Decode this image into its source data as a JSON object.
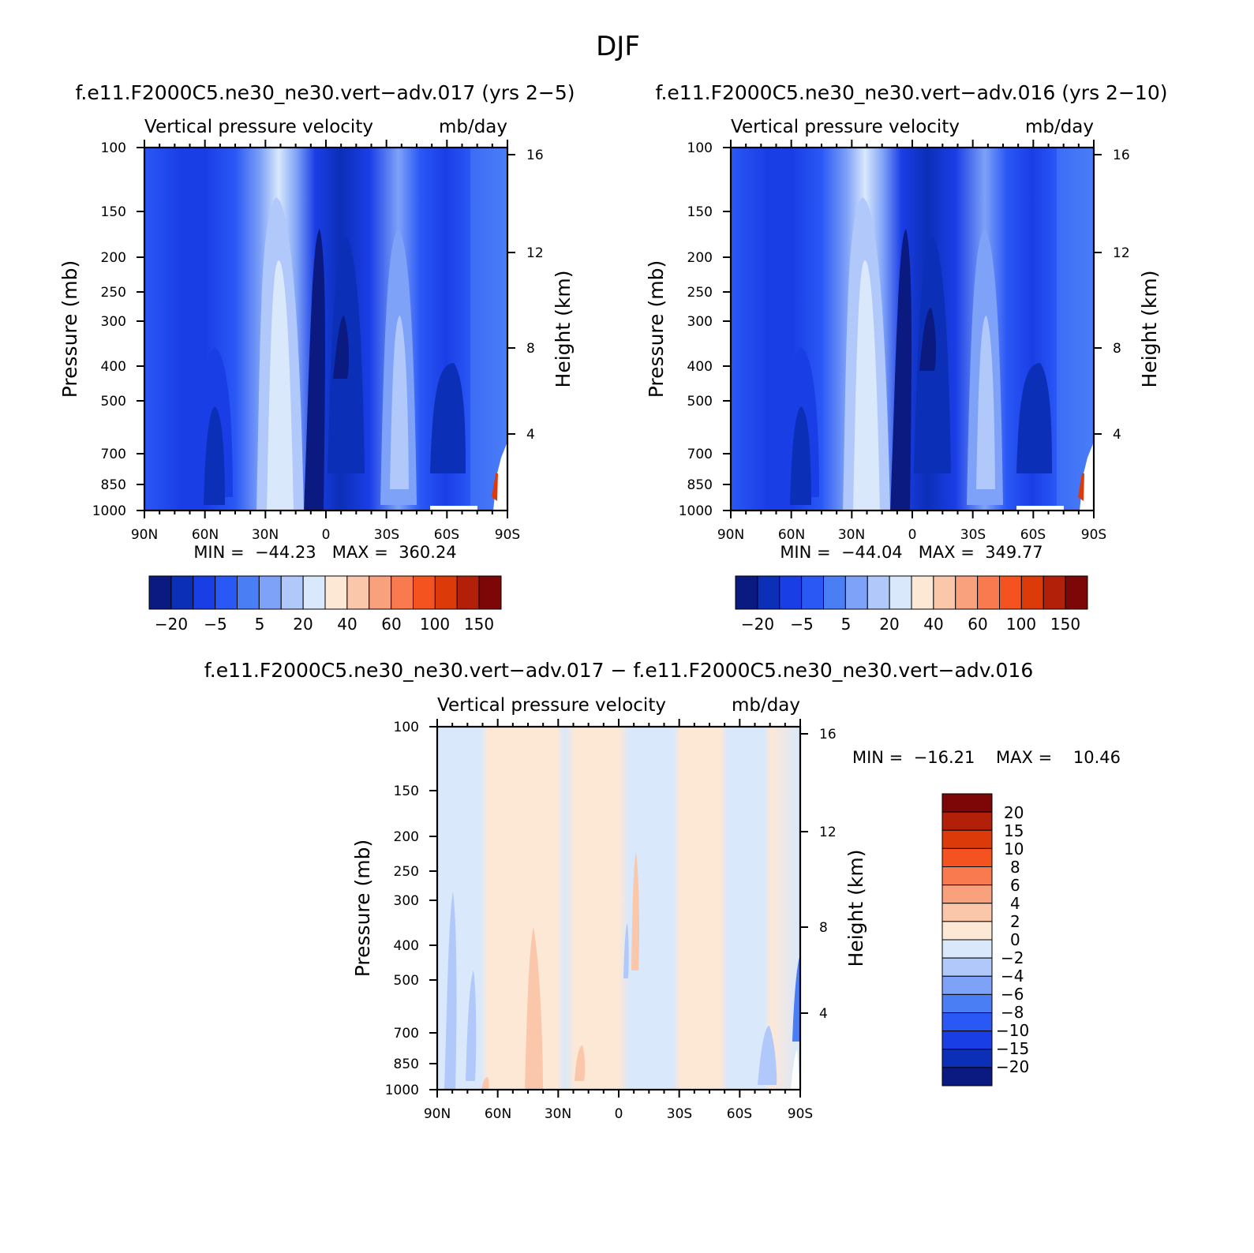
{
  "figure": {
    "season_title": "DJF"
  },
  "chart_data": [
    {
      "type": "heatmap",
      "case_title": "f.e11.F2000C5.ne30_ne30.vert−adv.017 (yrs 2−5)",
      "subtitle": "Vertical pressure velocity",
      "units": "mb/day",
      "ylabel": "Pressure (mb)",
      "right_ylabel": "Height (km)",
      "x_ticks": [
        "90N",
        "60N",
        "30N",
        "0",
        "30S",
        "60S",
        "90S"
      ],
      "y_ticks": [
        100,
        150,
        200,
        250,
        300,
        400,
        500,
        700,
        850,
        1000
      ],
      "right_ticks": [
        16,
        12,
        8,
        4
      ],
      "ylim": [
        1000,
        100
      ],
      "stats_text": "MIN =  −44.23   MAX =  360.24",
      "min": -44.23,
      "max": 360.24,
      "colorbar_labels": [
        "−20",
        "−5",
        "5",
        "20",
        "40",
        "60",
        "100",
        "150"
      ],
      "colorbar_colors": [
        "#0a1a80",
        "#0c2fb8",
        "#1a3ee6",
        "#2a58f5",
        "#4a7ef5",
        "#7ea2f7",
        "#b0c9fa",
        "#d9e8fb",
        "#fde8d6",
        "#fbc7ab",
        "#f9a07c",
        "#f87a4e",
        "#f4521e",
        "#dd3a0a",
        "#b2200a",
        "#7d0707"
      ]
    },
    {
      "type": "heatmap",
      "case_title": "f.e11.F2000C5.ne30_ne30.vert−adv.016 (yrs 2−10)",
      "subtitle": "Vertical pressure velocity",
      "units": "mb/day",
      "ylabel": "Pressure (mb)",
      "right_ylabel": "Height (km)",
      "x_ticks": [
        "90N",
        "60N",
        "30N",
        "0",
        "30S",
        "60S",
        "90S"
      ],
      "y_ticks": [
        100,
        150,
        200,
        250,
        300,
        400,
        500,
        700,
        850,
        1000
      ],
      "right_ticks": [
        16,
        12,
        8,
        4
      ],
      "ylim": [
        1000,
        100
      ],
      "stats_text": "MIN =  −44.04   MAX =  349.77",
      "min": -44.04,
      "max": 349.77,
      "colorbar_labels": [
        "−20",
        "−5",
        "5",
        "20",
        "40",
        "60",
        "100",
        "150"
      ],
      "colorbar_colors": [
        "#0a1a80",
        "#0c2fb8",
        "#1a3ee6",
        "#2a58f5",
        "#4a7ef5",
        "#7ea2f7",
        "#b0c9fa",
        "#d9e8fb",
        "#fde8d6",
        "#fbc7ab",
        "#f9a07c",
        "#f87a4e",
        "#f4521e",
        "#dd3a0a",
        "#b2200a",
        "#7d0707"
      ]
    },
    {
      "type": "heatmap",
      "case_title": "f.e11.F2000C5.ne30_ne30.vert−adv.017 − f.e11.F2000C5.ne30_ne30.vert−adv.016",
      "subtitle": "Vertical pressure velocity",
      "units": "mb/day",
      "ylabel": "Pressure (mb)",
      "right_ylabel": "Height (km)",
      "x_ticks": [
        "90N",
        "60N",
        "30N",
        "0",
        "30S",
        "60S",
        "90S"
      ],
      "y_ticks": [
        100,
        150,
        200,
        250,
        300,
        400,
        500,
        700,
        850,
        1000
      ],
      "right_ticks": [
        16,
        12,
        8,
        4
      ],
      "ylim": [
        1000,
        100
      ],
      "stats_text": "MIN =  −16.21    MAX =    10.46",
      "min": -16.21,
      "max": 10.46,
      "colorbar_labels": [
        "20",
        "15",
        "10",
        "8",
        "6",
        "4",
        "2",
        "0",
        "−2",
        "−4",
        "−6",
        "−8",
        "−10",
        "−15",
        "−20"
      ],
      "colorbar_colors": [
        "#7d0707",
        "#b2200a",
        "#dd3a0a",
        "#f4521e",
        "#f87a4e",
        "#f9a07c",
        "#fbc7ab",
        "#fde8d6",
        "#d9e8fb",
        "#b0c9fa",
        "#7ea2f7",
        "#4a7ef5",
        "#2a58f5",
        "#1a3ee6",
        "#0c2fb8",
        "#0a1a80"
      ]
    }
  ]
}
